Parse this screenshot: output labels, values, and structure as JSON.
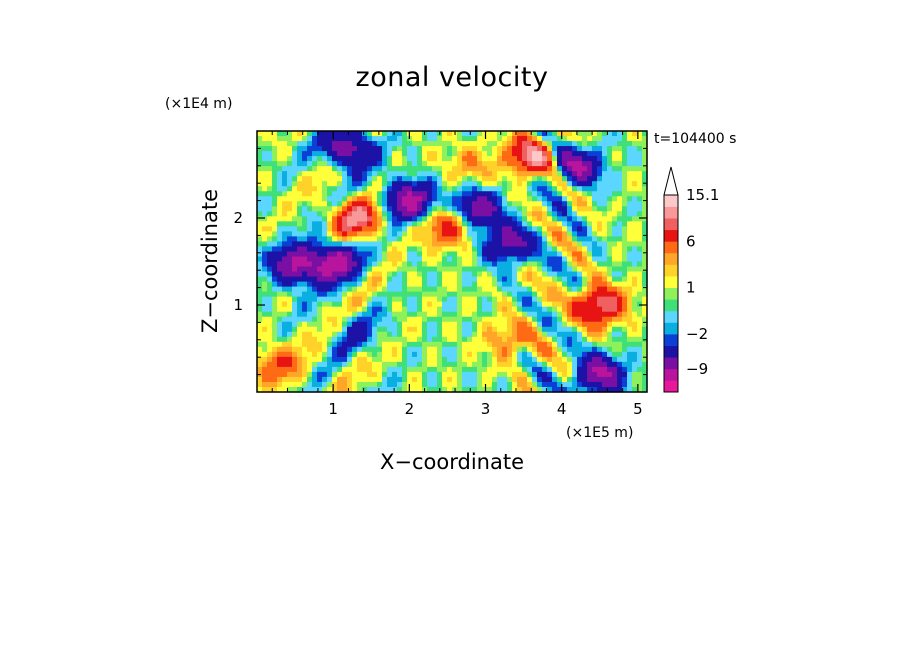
{
  "chart_data": {
    "type": "heatmap",
    "title": "zonal velocity",
    "xlabel": "X−coordinate",
    "ylabel": "Z−coordinate",
    "x_unit": "(×1E5 m)",
    "y_unit": "(×1E4 m)",
    "time_label": "t=104400 s",
    "xlim": [
      0,
      5.12
    ],
    "ylim": [
      0,
      3.0
    ],
    "x_ticks": [
      1,
      2,
      3,
      4,
      5
    ],
    "x_tick_labels": [
      "1",
      "2",
      "3",
      "4",
      "5"
    ],
    "y_ticks": [
      1,
      2
    ],
    "y_tick_labels": [
      "1",
      "2"
    ],
    "colorbar": {
      "levels": [
        -15,
        -12,
        -9,
        -6,
        -3,
        -2,
        -1,
        0,
        0.5,
        1,
        2,
        3,
        4,
        6,
        8,
        10,
        12,
        15.1
      ],
      "colors": [
        "#e8189a",
        "#b8149e",
        "#7a0fa3",
        "#1c12a6",
        "#0b3fd6",
        "#0aaee0",
        "#5ad6ff",
        "#3fe07a",
        "#8ef05a",
        "#ffff3a",
        "#ffd22a",
        "#ffa52a",
        "#ff6a14",
        "#e81414",
        "#f06060",
        "#f89898",
        "#fcc8c8"
      ],
      "tick_values": [
        15.1,
        6,
        1,
        -2,
        -9
      ],
      "tick_labels": [
        "15.1",
        "6",
        "1",
        "−2",
        "−9"
      ],
      "extend_max": true
    },
    "field_description_features": [
      {
        "x": 1.2,
        "z": 2.8,
        "v": -10
      },
      {
        "x": 1.0,
        "z": 1.5,
        "v": -11
      },
      {
        "x": 0.5,
        "z": 1.45,
        "v": -10
      },
      {
        "x": 2.0,
        "z": 2.2,
        "v": -11
      },
      {
        "x": 2.9,
        "z": 2.1,
        "v": -9
      },
      {
        "x": 3.3,
        "z": 1.7,
        "v": -8
      },
      {
        "x": 4.2,
        "z": 2.6,
        "v": -9
      },
      {
        "x": 4.5,
        "z": 0.2,
        "v": -10
      },
      {
        "x": 1.3,
        "z": 0.7,
        "v": -3
      },
      {
        "x": 1.3,
        "z": 2.0,
        "v": 9
      },
      {
        "x": 2.5,
        "z": 1.9,
        "v": 7
      },
      {
        "x": 3.6,
        "z": 2.7,
        "v": 10
      },
      {
        "x": 4.5,
        "z": 1.0,
        "v": 10
      },
      {
        "x": 3.3,
        "z": 0.6,
        "v": 4
      },
      {
        "x": 0.3,
        "z": 0.3,
        "v": 5
      },
      {
        "x": 2.8,
        "z": 2.6,
        "v": 3
      }
    ]
  }
}
